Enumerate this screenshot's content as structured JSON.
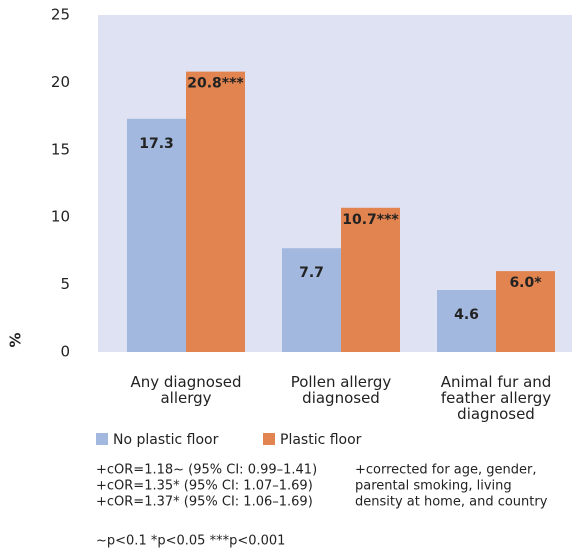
{
  "chart_data": {
    "type": "bar",
    "y_label": "%",
    "categories": [
      "Any diagnosed allergy",
      "Pollen allergy diagnosed",
      "Animal fur and feather allergy diagnosed"
    ],
    "series": [
      {
        "name": "No plastic floor",
        "color": "#a3b8de",
        "values": [
          17.3,
          7.7,
          4.6
        ],
        "value_labels": [
          "17.3",
          "7.7",
          "4.6"
        ]
      },
      {
        "name": "Plastic floor",
        "color": "#e2844f",
        "values": [
          20.8,
          10.7,
          6.0
        ],
        "value_labels": [
          "20.8***",
          "10.7***",
          "6.0*"
        ]
      }
    ],
    "ylim": [
      0,
      25
    ],
    "yticks": [
      0,
      5,
      10,
      15,
      20,
      25
    ],
    "background": "#dfe2f3",
    "notes_left": [
      "+cOR=1.18~ (95% CI: 0.99–1.41)",
      "+cOR=1.35* (95% CI: 1.07–1.69)",
      "+cOR=1.37* (95% CI: 1.06–1.69)"
    ],
    "notes_right": [
      "+corrected for age, gender,",
      "parental smoking, living",
      "density at home, and country"
    ],
    "significance": "~p<0.1 *p<0.05 ***p<0.001"
  }
}
